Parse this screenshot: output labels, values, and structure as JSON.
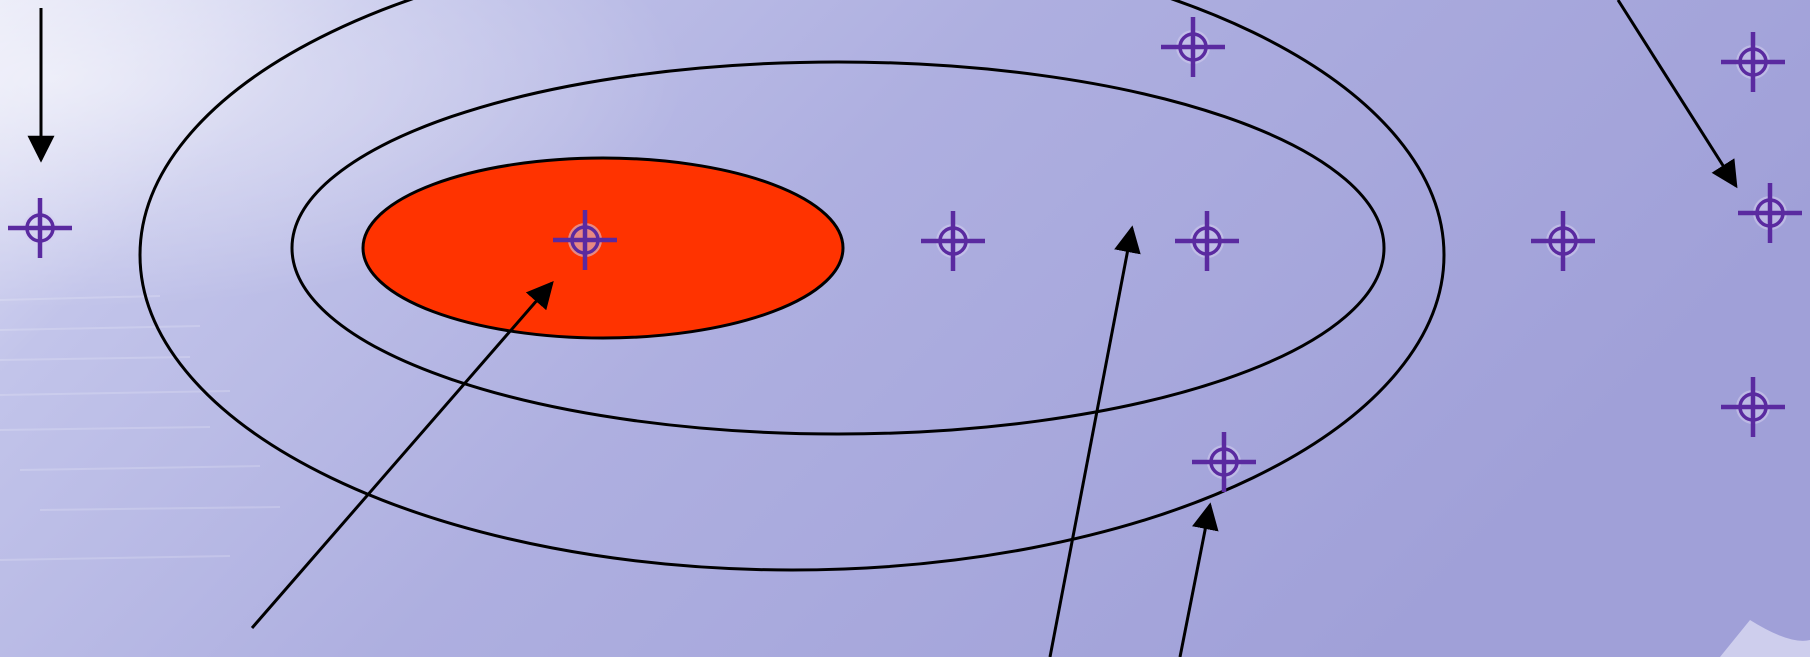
{
  "colors": {
    "background_light": "#e3e4f6",
    "background_mid": "#b6b8e4",
    "background_dark": "#9d9dd6",
    "core_fill": "#ff3300",
    "outline": "#000000",
    "marker": "#5a2aa0",
    "marker_halo": "#cfc8ea"
  },
  "icons": {
    "marker": "crosshair-target-icon"
  }
}
